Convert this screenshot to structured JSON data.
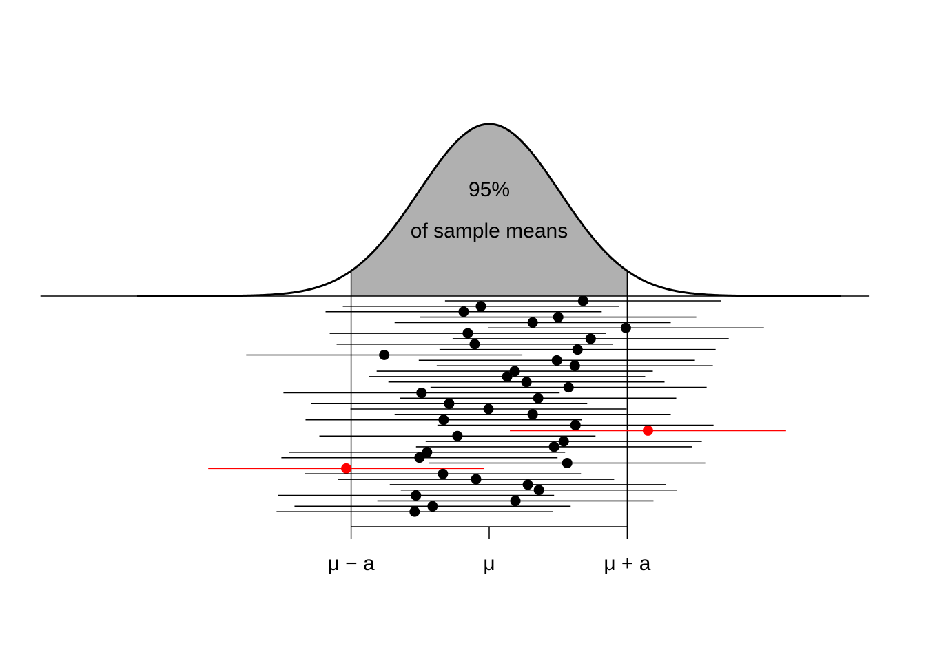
{
  "chart_data": {
    "type": "scatter",
    "title": "",
    "xlabel": "",
    "ylabel": "",
    "xlim": [
      -6.5,
      5.5
    ],
    "x_ticks": [
      {
        "value": -2,
        "label": "μ − a"
      },
      {
        "value": 0,
        "label": "μ"
      },
      {
        "value": 2,
        "label": "μ + a"
      }
    ],
    "annotation": {
      "line1": "95%",
      "line2": "of sample means"
    },
    "density": {
      "distribution": "normal",
      "mean": 0,
      "sd": 1.02,
      "shaded_from": -2,
      "shaded_to": 2,
      "curve_from": -5.1,
      "curve_to": 5.1,
      "fill": "#b0b0b0",
      "stroke": "#000000"
    },
    "interval_half_width": 2,
    "colors": {
      "covers": "#000000",
      "misses": "#ff0000"
    },
    "samples": [
      {
        "mean": 1.36,
        "covers": true
      },
      {
        "mean": -0.12,
        "covers": true
      },
      {
        "mean": -0.37,
        "covers": true
      },
      {
        "mean": 1.0,
        "covers": true
      },
      {
        "mean": 0.63,
        "covers": true
      },
      {
        "mean": 1.98,
        "covers": true
      },
      {
        "mean": -0.31,
        "covers": true
      },
      {
        "mean": 1.47,
        "covers": true
      },
      {
        "mean": -0.21,
        "covers": true
      },
      {
        "mean": 1.28,
        "covers": true
      },
      {
        "mean": -1.52,
        "covers": true
      },
      {
        "mean": 0.98,
        "covers": true
      },
      {
        "mean": 1.24,
        "covers": true
      },
      {
        "mean": 0.37,
        "covers": true
      },
      {
        "mean": 0.26,
        "covers": true
      },
      {
        "mean": 0.54,
        "covers": true
      },
      {
        "mean": 1.15,
        "covers": true
      },
      {
        "mean": -0.98,
        "covers": true
      },
      {
        "mean": 0.71,
        "covers": true
      },
      {
        "mean": -0.58,
        "covers": true
      },
      {
        "mean": -0.01,
        "covers": true
      },
      {
        "mean": 0.63,
        "covers": true
      },
      {
        "mean": -0.66,
        "covers": true
      },
      {
        "mean": 1.25,
        "covers": true
      },
      {
        "mean": 2.3,
        "covers": false
      },
      {
        "mean": -0.46,
        "covers": true
      },
      {
        "mean": 1.08,
        "covers": true
      },
      {
        "mean": 0.94,
        "covers": true
      },
      {
        "mean": -0.9,
        "covers": true
      },
      {
        "mean": -1.01,
        "covers": true
      },
      {
        "mean": 1.13,
        "covers": true
      },
      {
        "mean": -2.07,
        "covers": false
      },
      {
        "mean": -0.67,
        "covers": true
      },
      {
        "mean": -0.19,
        "covers": true
      },
      {
        "mean": 0.56,
        "covers": true
      },
      {
        "mean": 0.72,
        "covers": true
      },
      {
        "mean": -1.06,
        "covers": true
      },
      {
        "mean": 0.38,
        "covers": true
      },
      {
        "mean": -0.82,
        "covers": true
      },
      {
        "mean": -1.08,
        "covers": true
      }
    ]
  }
}
